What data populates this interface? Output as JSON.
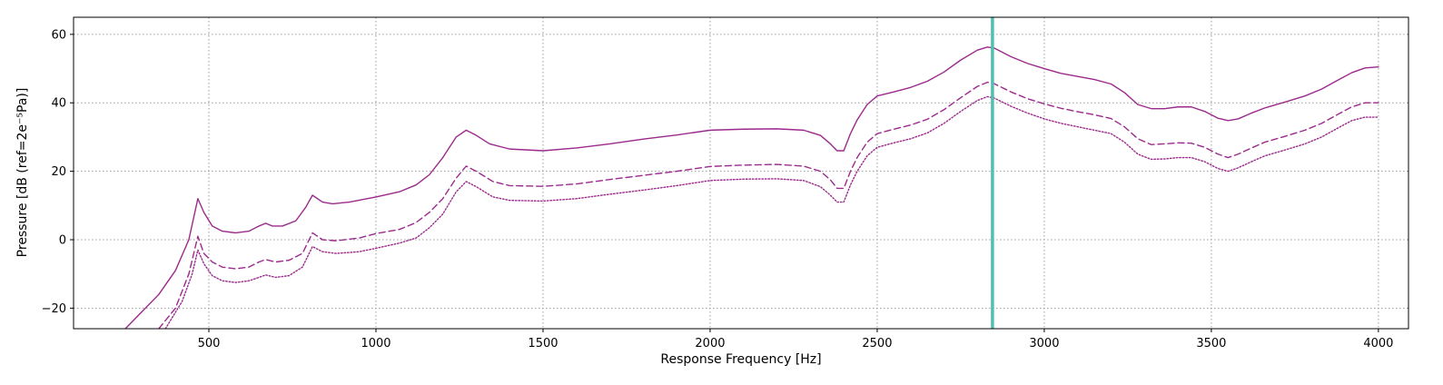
{
  "chart_data": {
    "type": "line",
    "title": "",
    "xlabel": "Response Frequency [Hz]",
    "ylabel": "Pressure [dB (ref=2e⁻⁵Pa)]",
    "xlim": [
      95,
      4090
    ],
    "ylim": [
      -26,
      65
    ],
    "grid": true,
    "x_ticks": [
      500,
      1000,
      1500,
      2000,
      2500,
      3000,
      3500,
      4000
    ],
    "y_ticks": [
      -20,
      0,
      20,
      40,
      60
    ],
    "x_tick_labels": [
      "500",
      "1000",
      "1500",
      "2000",
      "2500",
      "3000",
      "3500",
      "4000"
    ],
    "y_tick_labels": [
      "−20",
      "0",
      "20",
      "40",
      "60"
    ],
    "marker": {
      "x": 2845,
      "color": "#4fbfb0"
    },
    "series": [
      {
        "name": "solid",
        "style": "solid",
        "color": "#9b2a8c",
        "points": [
          [
            250,
            -26
          ],
          [
            300,
            -21
          ],
          [
            350,
            -16
          ],
          [
            400,
            -9
          ],
          [
            440,
            0
          ],
          [
            467,
            12
          ],
          [
            485,
            8
          ],
          [
            510,
            4
          ],
          [
            540,
            2.5
          ],
          [
            580,
            2
          ],
          [
            620,
            2.5
          ],
          [
            650,
            4
          ],
          [
            670,
            4.8
          ],
          [
            690,
            4
          ],
          [
            720,
            4
          ],
          [
            760,
            5.5
          ],
          [
            790,
            9.5
          ],
          [
            810,
            13
          ],
          [
            840,
            11
          ],
          [
            870,
            10.5
          ],
          [
            920,
            11
          ],
          [
            1000,
            12.5
          ],
          [
            1070,
            14
          ],
          [
            1120,
            16
          ],
          [
            1160,
            19
          ],
          [
            1200,
            24
          ],
          [
            1240,
            30
          ],
          [
            1270,
            32
          ],
          [
            1300,
            30.5
          ],
          [
            1340,
            28
          ],
          [
            1400,
            26.5
          ],
          [
            1500,
            26
          ],
          [
            1600,
            26.8
          ],
          [
            1700,
            28
          ],
          [
            1800,
            29.4
          ],
          [
            1900,
            30.6
          ],
          [
            2000,
            32
          ],
          [
            2100,
            32.3
          ],
          [
            2200,
            32.4
          ],
          [
            2280,
            32
          ],
          [
            2330,
            30.5
          ],
          [
            2360,
            28
          ],
          [
            2380,
            26
          ],
          [
            2400,
            26
          ],
          [
            2420,
            31
          ],
          [
            2440,
            35
          ],
          [
            2470,
            39.5
          ],
          [
            2500,
            42
          ],
          [
            2550,
            43.2
          ],
          [
            2600,
            44.5
          ],
          [
            2650,
            46.3
          ],
          [
            2700,
            49
          ],
          [
            2750,
            52.5
          ],
          [
            2800,
            55.4
          ],
          [
            2830,
            56.3
          ],
          [
            2850,
            56
          ],
          [
            2900,
            53.5
          ],
          [
            2950,
            51.5
          ],
          [
            3000,
            50
          ],
          [
            3050,
            48.6
          ],
          [
            3100,
            47.7
          ],
          [
            3150,
            46.8
          ],
          [
            3200,
            45.5
          ],
          [
            3240,
            43
          ],
          [
            3280,
            39.5
          ],
          [
            3320,
            38.3
          ],
          [
            3360,
            38.3
          ],
          [
            3400,
            38.8
          ],
          [
            3440,
            38.8
          ],
          [
            3480,
            37.5
          ],
          [
            3520,
            35.5
          ],
          [
            3550,
            34.8
          ],
          [
            3580,
            35.3
          ],
          [
            3620,
            37
          ],
          [
            3660,
            38.5
          ],
          [
            3720,
            40.2
          ],
          [
            3780,
            42
          ],
          [
            3830,
            44
          ],
          [
            3880,
            46.7
          ],
          [
            3920,
            48.8
          ],
          [
            3960,
            50.2
          ],
          [
            4000,
            50.5
          ]
        ]
      },
      {
        "name": "dashed",
        "style": "dashed",
        "color": "#9b2a8c",
        "points": [
          [
            350,
            -26
          ],
          [
            400,
            -20
          ],
          [
            440,
            -10
          ],
          [
            467,
            1
          ],
          [
            485,
            -4
          ],
          [
            510,
            -6.5
          ],
          [
            540,
            -8
          ],
          [
            580,
            -8.5
          ],
          [
            620,
            -8
          ],
          [
            650,
            -6.5
          ],
          [
            670,
            -5.8
          ],
          [
            700,
            -6.5
          ],
          [
            740,
            -6
          ],
          [
            780,
            -4
          ],
          [
            810,
            2
          ],
          [
            840,
            0
          ],
          [
            880,
            -0.3
          ],
          [
            950,
            0.5
          ],
          [
            1000,
            1.8
          ],
          [
            1070,
            3
          ],
          [
            1120,
            5
          ],
          [
            1160,
            8
          ],
          [
            1200,
            12
          ],
          [
            1240,
            18
          ],
          [
            1270,
            21.5
          ],
          [
            1300,
            20
          ],
          [
            1350,
            17
          ],
          [
            1400,
            15.8
          ],
          [
            1500,
            15.6
          ],
          [
            1600,
            16.3
          ],
          [
            1700,
            17.6
          ],
          [
            1800,
            18.8
          ],
          [
            1900,
            20
          ],
          [
            2000,
            21.4
          ],
          [
            2100,
            21.8
          ],
          [
            2200,
            22
          ],
          [
            2280,
            21.5
          ],
          [
            2330,
            20
          ],
          [
            2360,
            17.5
          ],
          [
            2380,
            15
          ],
          [
            2400,
            15
          ],
          [
            2420,
            20
          ],
          [
            2440,
            24
          ],
          [
            2470,
            28.5
          ],
          [
            2500,
            31
          ],
          [
            2550,
            32.3
          ],
          [
            2600,
            33.5
          ],
          [
            2650,
            35.2
          ],
          [
            2700,
            38
          ],
          [
            2750,
            41.5
          ],
          [
            2800,
            44.8
          ],
          [
            2830,
            46
          ],
          [
            2850,
            45.6
          ],
          [
            2900,
            43.2
          ],
          [
            2950,
            41.2
          ],
          [
            3000,
            39.7
          ],
          [
            3050,
            38.4
          ],
          [
            3100,
            37.4
          ],
          [
            3150,
            36.5
          ],
          [
            3200,
            35.4
          ],
          [
            3240,
            33
          ],
          [
            3280,
            29.5
          ],
          [
            3320,
            27.8
          ],
          [
            3360,
            28
          ],
          [
            3400,
            28.3
          ],
          [
            3440,
            28.2
          ],
          [
            3480,
            27
          ],
          [
            3520,
            25
          ],
          [
            3550,
            24
          ],
          [
            3580,
            25
          ],
          [
            3620,
            26.8
          ],
          [
            3660,
            28.5
          ],
          [
            3720,
            30.2
          ],
          [
            3780,
            32
          ],
          [
            3830,
            34
          ],
          [
            3880,
            36.7
          ],
          [
            3920,
            38.8
          ],
          [
            3960,
            40
          ],
          [
            4000,
            40
          ]
        ]
      },
      {
        "name": "dotted",
        "style": "dotted",
        "color": "#9b2a8c",
        "points": [
          [
            370,
            -26
          ],
          [
            420,
            -18
          ],
          [
            450,
            -10
          ],
          [
            467,
            -3
          ],
          [
            485,
            -7
          ],
          [
            510,
            -10.5
          ],
          [
            540,
            -12
          ],
          [
            580,
            -12.5
          ],
          [
            620,
            -12
          ],
          [
            650,
            -11
          ],
          [
            670,
            -10.3
          ],
          [
            700,
            -11
          ],
          [
            740,
            -10.5
          ],
          [
            780,
            -8
          ],
          [
            810,
            -2
          ],
          [
            840,
            -3.5
          ],
          [
            880,
            -4
          ],
          [
            950,
            -3.5
          ],
          [
            1000,
            -2.5
          ],
          [
            1070,
            -1
          ],
          [
            1120,
            0.5
          ],
          [
            1160,
            3.5
          ],
          [
            1200,
            7.5
          ],
          [
            1240,
            14
          ],
          [
            1270,
            17
          ],
          [
            1300,
            15.5
          ],
          [
            1350,
            12.5
          ],
          [
            1400,
            11.5
          ],
          [
            1500,
            11.3
          ],
          [
            1600,
            12
          ],
          [
            1700,
            13.3
          ],
          [
            1800,
            14.5
          ],
          [
            1900,
            15.8
          ],
          [
            2000,
            17.3
          ],
          [
            2100,
            17.7
          ],
          [
            2200,
            17.8
          ],
          [
            2280,
            17.3
          ],
          [
            2330,
            15.5
          ],
          [
            2360,
            13
          ],
          [
            2380,
            11
          ],
          [
            2400,
            11
          ],
          [
            2420,
            16
          ],
          [
            2440,
            20
          ],
          [
            2470,
            24.5
          ],
          [
            2500,
            27
          ],
          [
            2550,
            28.3
          ],
          [
            2600,
            29.5
          ],
          [
            2650,
            31.2
          ],
          [
            2700,
            34
          ],
          [
            2750,
            37.5
          ],
          [
            2800,
            40.7
          ],
          [
            2830,
            41.8
          ],
          [
            2850,
            41.4
          ],
          [
            2900,
            39
          ],
          [
            2950,
            37
          ],
          [
            3000,
            35.3
          ],
          [
            3050,
            34
          ],
          [
            3100,
            33
          ],
          [
            3150,
            32
          ],
          [
            3200,
            31
          ],
          [
            3240,
            28.5
          ],
          [
            3280,
            25
          ],
          [
            3320,
            23.5
          ],
          [
            3360,
            23.6
          ],
          [
            3400,
            24
          ],
          [
            3440,
            24
          ],
          [
            3480,
            22.8
          ],
          [
            3520,
            20.8
          ],
          [
            3550,
            20
          ],
          [
            3580,
            21
          ],
          [
            3620,
            22.8
          ],
          [
            3660,
            24.5
          ],
          [
            3720,
            26.2
          ],
          [
            3780,
            28
          ],
          [
            3830,
            30
          ],
          [
            3880,
            32.7
          ],
          [
            3920,
            34.8
          ],
          [
            3960,
            35.8
          ],
          [
            4000,
            35.8
          ]
        ]
      }
    ]
  }
}
